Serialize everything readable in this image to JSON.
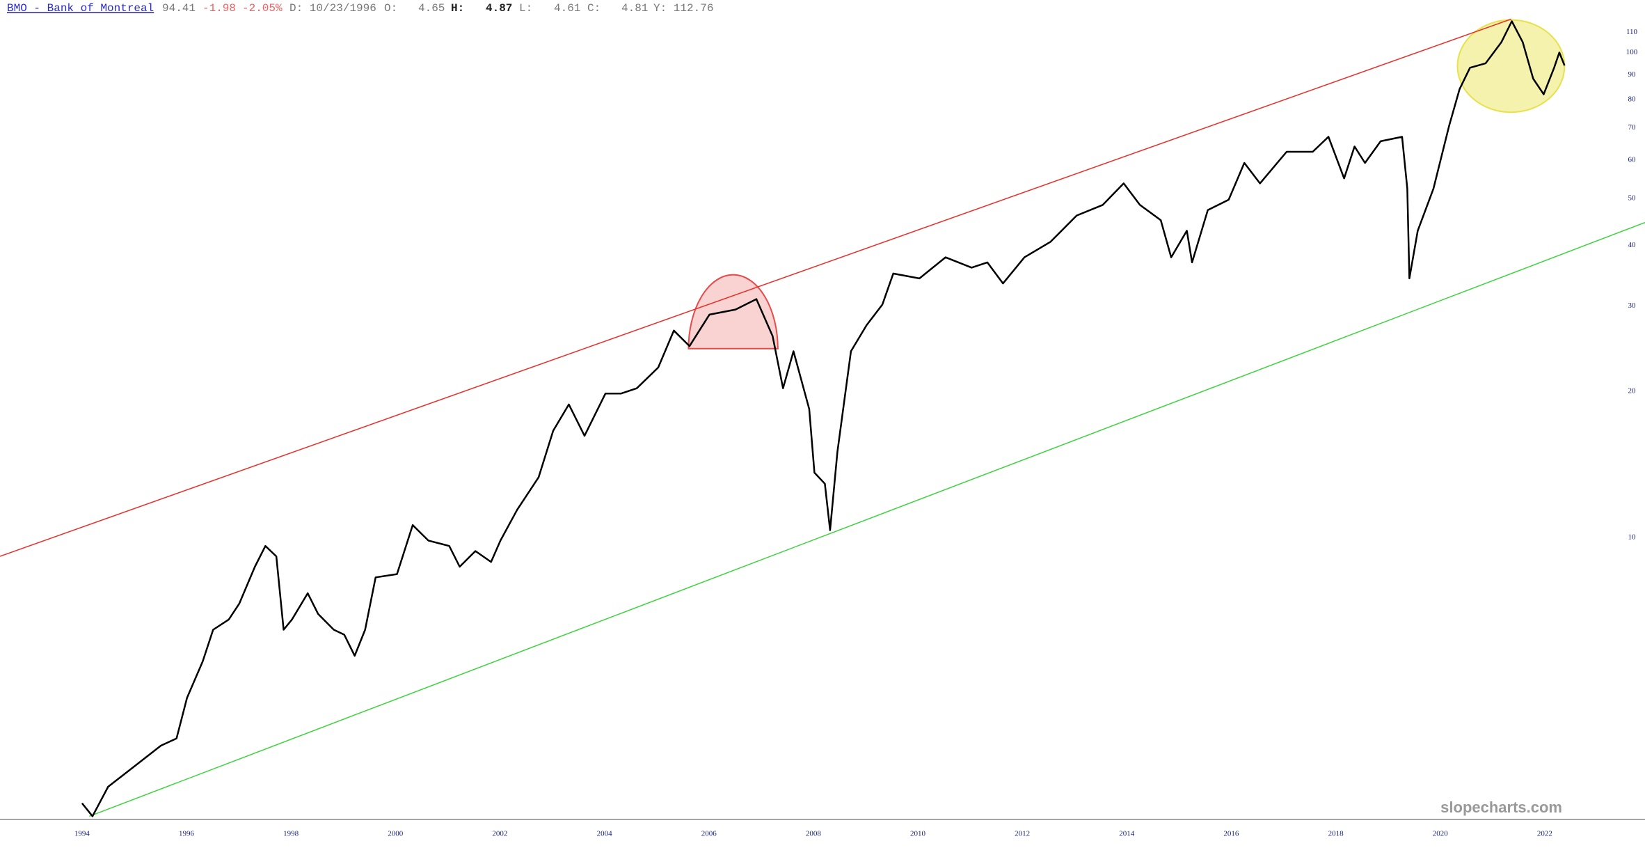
{
  "header": {
    "ticker_link": "BMO - Bank of Montreal",
    "last": "94.41",
    "change": "-1.98",
    "change_pct": "-2.05%",
    "date": "D: 10/23/1996",
    "open_label": "O:",
    "open": "4.65",
    "high_label": "H:",
    "high": "4.87",
    "low_label": "L:",
    "low": "4.61",
    "close_label": "C:",
    "close": "4.81",
    "year_high": "Y: 112.76"
  },
  "watermark": "slopecharts.com",
  "chart_data": {
    "type": "line",
    "log_scale": true,
    "grid": false,
    "xlim": [
      1992.43,
      2023.92
    ],
    "xticks": [
      1994,
      1996,
      1998,
      2000,
      2002,
      2004,
      2006,
      2008,
      2010,
      2012,
      2014,
      2016,
      2018,
      2020,
      2022
    ],
    "ylim": [
      2.62,
      128.3
    ],
    "yticks": [
      10,
      20,
      30,
      40,
      50,
      60,
      70,
      80,
      90,
      100,
      110
    ],
    "series": [
      {
        "name": "BMO",
        "color": "#000000",
        "x": [
          1994.0,
          1994.2,
          1994.5,
          1995.0,
          1995.51,
          1995.81,
          1996.01,
          1996.31,
          1996.51,
          1996.81,
          1997.01,
          1997.31,
          1997.51,
          1997.72,
          1997.86,
          1998.02,
          1998.32,
          1998.52,
          1998.82,
          1999.02,
          1999.22,
          1999.42,
          1999.62,
          2000.03,
          2000.33,
          2000.63,
          2001.03,
          2001.23,
          2001.53,
          2001.83,
          2002.01,
          2002.33,
          2002.74,
          2003.02,
          2003.32,
          2003.62,
          2004.02,
          2004.32,
          2004.62,
          2005.03,
          2005.33,
          2005.63,
          2006.01,
          2006.51,
          2006.91,
          2007.22,
          2007.42,
          2007.62,
          2007.92,
          2008.02,
          2008.22,
          2008.32,
          2008.46,
          2008.72,
          2009.02,
          2009.32,
          2009.53,
          2010.03,
          2010.53,
          2011.03,
          2011.33,
          2011.63,
          2012.04,
          2012.54,
          2013.04,
          2013.54,
          2013.94,
          2014.25,
          2014.65,
          2014.85,
          2015.15,
          2015.25,
          2015.55,
          2015.95,
          2016.25,
          2016.55,
          2017.06,
          2017.56,
          2017.86,
          2018.16,
          2018.36,
          2018.56,
          2018.86,
          2019.27,
          2019.37,
          2019.41,
          2019.57,
          2019.87,
          2020.17,
          2020.37,
          2020.57,
          2020.87,
          2021.17,
          2021.37,
          2021.58,
          2021.78,
          2021.98,
          2022.18,
          2022.28,
          2022.38
        ],
        "values": [
          2.83,
          2.66,
          3.06,
          3.37,
          3.72,
          3.85,
          4.67,
          5.55,
          6.45,
          6.77,
          7.3,
          8.7,
          9.6,
          9.14,
          6.45,
          6.77,
          7.67,
          6.95,
          6.45,
          6.3,
          5.7,
          6.45,
          8.27,
          8.4,
          10.6,
          9.85,
          9.6,
          8.7,
          9.37,
          8.9,
          9.85,
          11.4,
          13.3,
          16.6,
          18.8,
          16.2,
          19.8,
          19.8,
          20.3,
          22.4,
          26.7,
          24.8,
          28.8,
          29.5,
          31,
          26,
          20.3,
          24.2,
          18.4,
          13.6,
          12.9,
          10.35,
          15,
          24.2,
          27.4,
          30.2,
          35,
          34.2,
          37.8,
          36,
          36.9,
          33.4,
          37.8,
          40.7,
          46.1,
          48.5,
          53.7,
          48.5,
          45.1,
          37.8,
          42.9,
          36.9,
          47.3,
          49.7,
          59.2,
          53.7,
          62.4,
          62.4,
          67,
          55,
          64,
          59.2,
          65.6,
          67,
          52.4,
          34.2,
          42.9,
          52.4,
          70.6,
          84,
          93,
          95,
          105,
          116,
          105,
          88.3,
          82,
          93,
          100,
          94
        ]
      }
    ],
    "trendlines": [
      {
        "color": "#e8302a",
        "x": [
          1992.43,
          2021.36
        ],
        "values": [
          9.14,
          117.2
        ]
      },
      {
        "color": "#3fd23f",
        "x": [
          1994.14,
          2023.92
        ],
        "values": [
          2.66,
          44.6
        ]
      }
    ],
    "highlights": [
      {
        "shape": "dome",
        "color": "#e84a4a",
        "x": [
          2005.61,
          2007.32
        ],
        "values": [
          24.5,
          34.8
        ]
      },
      {
        "shape": "ellipse",
        "color": "#e6e24a",
        "x": [
          2020.33,
          2022.38
        ],
        "values": [
          75.3,
          116.7
        ]
      }
    ]
  }
}
